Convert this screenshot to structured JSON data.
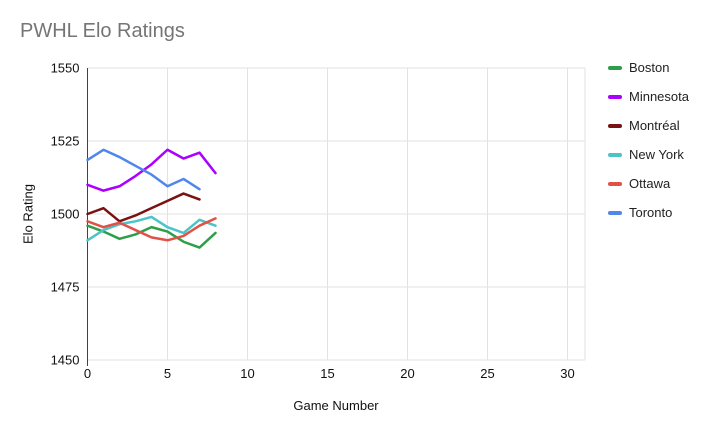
{
  "title": "PWHL Elo Ratings",
  "chart_data": {
    "type": "line",
    "title": "PWHL Elo Ratings",
    "xlabel": "Game Number",
    "ylabel": "Elo Rating",
    "xlim": [
      0,
      31
    ],
    "ylim": [
      1450,
      1550
    ],
    "x_ticks": [
      0,
      5,
      10,
      15,
      20,
      25,
      30
    ],
    "y_ticks": [
      1450,
      1475,
      1500,
      1525,
      1550
    ],
    "grid": true,
    "legend_position": "right",
    "x": [
      0,
      1,
      2,
      3,
      4,
      5,
      6,
      7,
      8
    ],
    "series": [
      {
        "name": "Boston",
        "color": "#2f9e49",
        "values": [
          1496,
          1494,
          1491.5,
          1493,
          1495.5,
          1494,
          1490.5,
          1488.5,
          1493.5
        ]
      },
      {
        "name": "Minnesota",
        "color": "#aa00ff",
        "values": [
          1510,
          1508,
          1509.5,
          1513,
          1517,
          1522,
          1519,
          1521,
          1514
        ]
      },
      {
        "name": "Montréal",
        "color": "#7a1212",
        "values": [
          1500,
          1502,
          1497.5,
          1499.5,
          1502,
          1504.5,
          1507,
          1505,
          null
        ]
      },
      {
        "name": "New York",
        "color": "#4ac4c9",
        "values": [
          1491,
          1494.5,
          1496.5,
          1497.5,
          1499,
          1495.5,
          1493.5,
          1498,
          1496
        ]
      },
      {
        "name": "Ottawa",
        "color": "#e05247",
        "values": [
          1497.5,
          1495.5,
          1497,
          1494.5,
          1492,
          1491,
          1492.5,
          1496,
          1498.5
        ]
      },
      {
        "name": "Toronto",
        "color": "#4f87ea",
        "values": [
          1518.5,
          1522,
          1519.5,
          1516.5,
          1513.5,
          1509.5,
          1512,
          1508.5,
          null
        ]
      }
    ],
    "style": {
      "gridline_color": "#e2e2e2",
      "axis_line_color": "#424242",
      "title_color": "#757575",
      "tick_label_color": "#111111",
      "line_width": 2.5
    }
  }
}
